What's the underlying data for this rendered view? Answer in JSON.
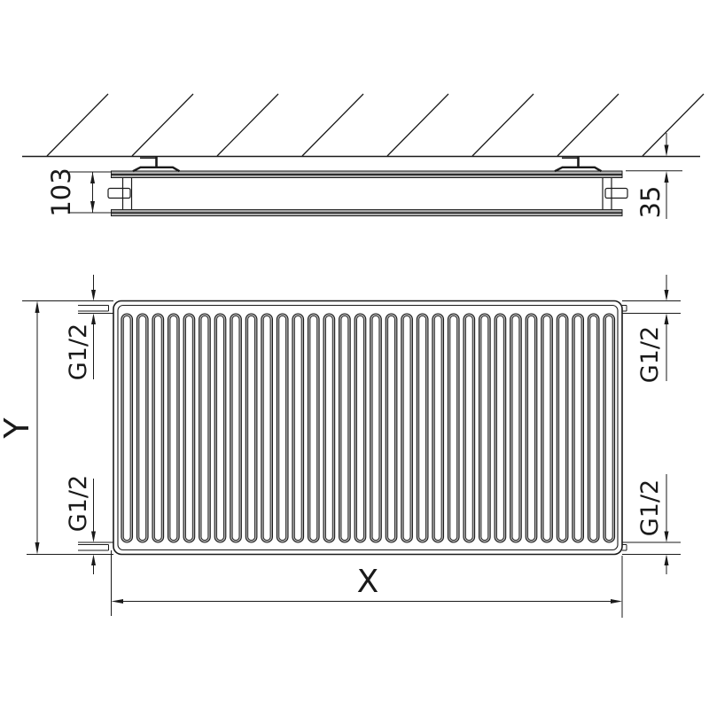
{
  "drawing_title": "radiator-dimension-drawing",
  "side_view": {
    "depth_label": "103",
    "wall_distance_label": "35"
  },
  "front_view": {
    "height_label": "Y",
    "width_label": "X",
    "fins_count": 32,
    "connections": {
      "top_left": "G1/2",
      "bottom_left": "G1/2",
      "top_right": "G1/2",
      "bottom_right": "G1/2"
    }
  },
  "colors": {
    "line": "#1a1a1a",
    "gray": "#b0b0b0",
    "background": "#ffffff"
  }
}
